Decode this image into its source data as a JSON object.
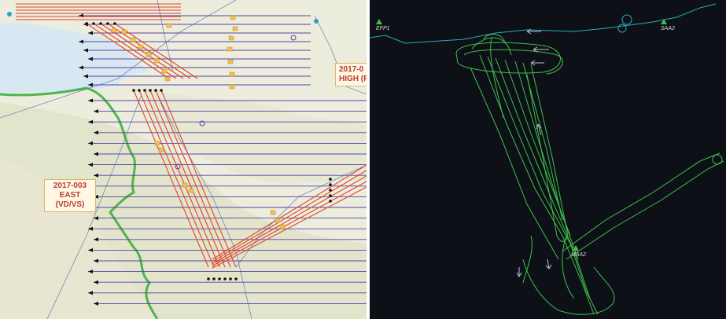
{
  "map": {
    "zone_east_id": "2017-003",
    "zone_east_name": "EAST (VD/VS)",
    "zone_high_id": "2017-0",
    "zone_high_name": "HIGH (FR"
  },
  "tracks": {
    "stations": [
      {
        "id": "efp1",
        "label": "EFP1"
      },
      {
        "id": "saa2",
        "label": "SAA2"
      },
      {
        "id": "maa2",
        "label": "MAA2"
      }
    ]
  },
  "colors": {
    "map_bg": "#eef0df",
    "east_west_lines": "#5b3fa8",
    "flight_strips": "#e0442a",
    "border": "#3fae3f",
    "track_bg": "#0d1117",
    "track_line": "#3fbf4a",
    "track_line_2": "#2fa8b8"
  }
}
